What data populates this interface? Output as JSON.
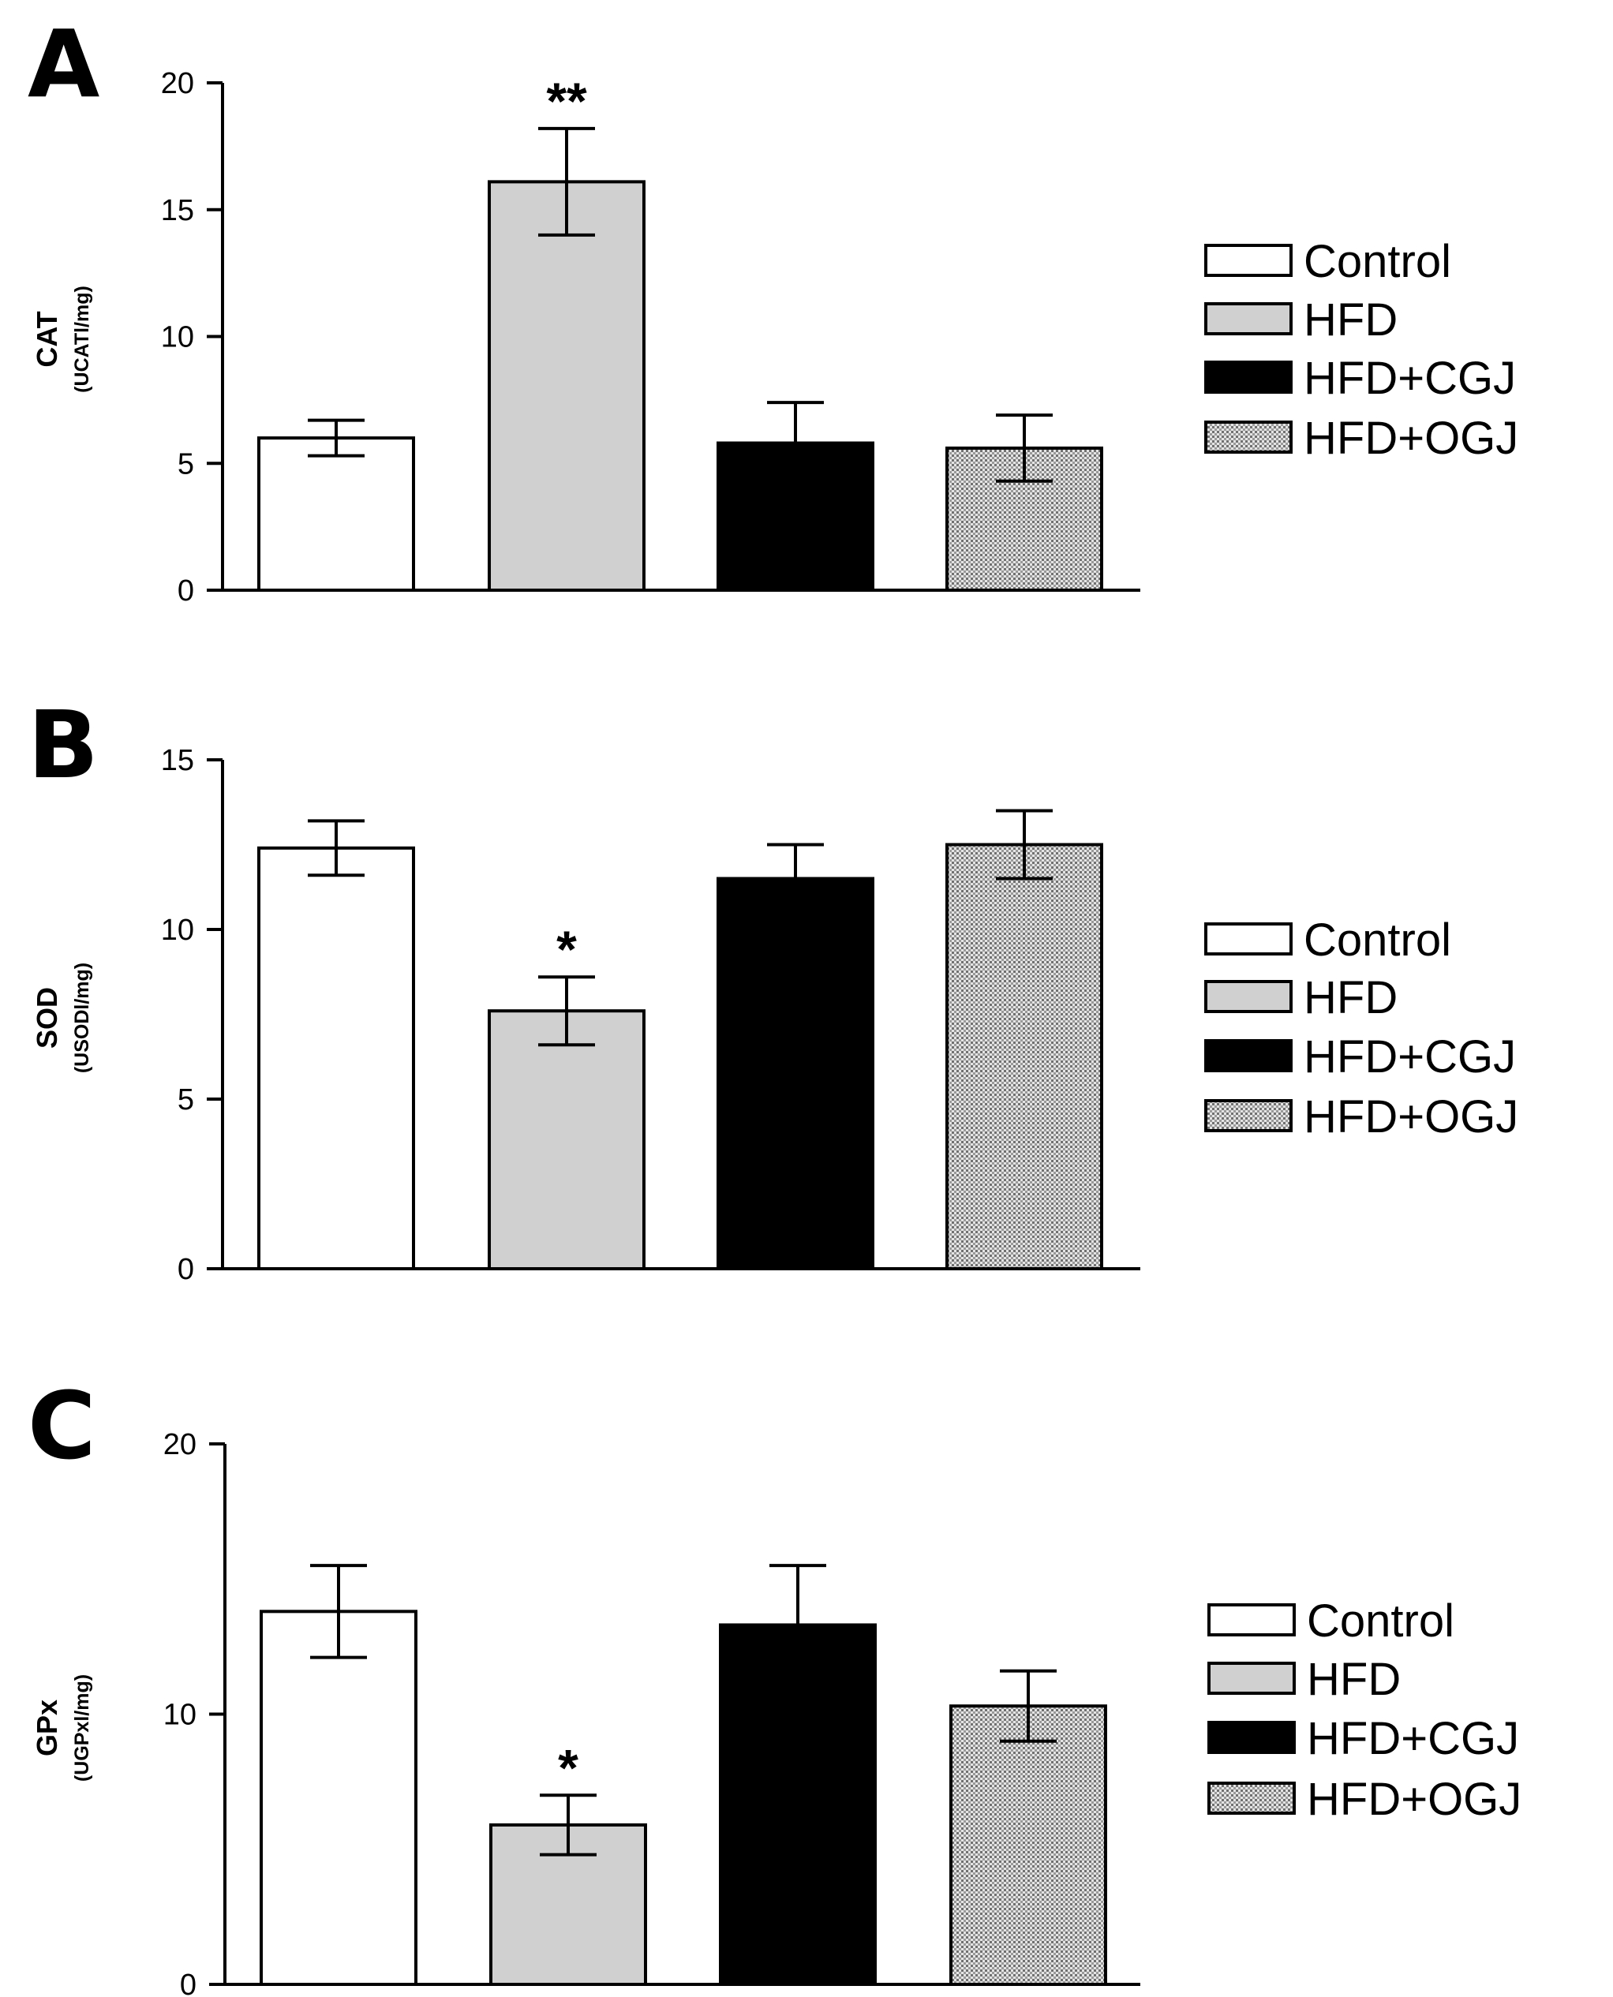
{
  "chart_data": [
    {
      "type": "bar",
      "panel": "A",
      "ylabel": "CAT",
      "yunit": "(UCATl/mg)",
      "categories": [
        "Control",
        "HFD",
        "HFD+CGJ",
        "HFD+OGJ"
      ],
      "values": [
        6.0,
        16.1,
        5.8,
        5.6
      ],
      "errors": [
        0.7,
        2.1,
        1.6,
        1.3
      ],
      "significance": [
        "",
        "**",
        "",
        ""
      ],
      "ylim": [
        0,
        20
      ],
      "yticks": [
        0,
        5,
        10,
        15,
        20
      ],
      "legend": [
        "Control",
        "HFD",
        "HFD+CGJ",
        "HFD+OGJ"
      ]
    },
    {
      "type": "bar",
      "panel": "B",
      "ylabel": "SOD",
      "yunit": "(USODl/mg)",
      "categories": [
        "Control",
        "HFD",
        "HFD+CGJ",
        "HFD+OGJ"
      ],
      "values": [
        12.4,
        7.6,
        11.5,
        12.5
      ],
      "errors": [
        0.8,
        1.0,
        1.0,
        1.0
      ],
      "significance": [
        "",
        "*",
        "",
        ""
      ],
      "ylim": [
        0,
        15
      ],
      "yticks": [
        0,
        5,
        10,
        15
      ],
      "legend": [
        "Control",
        "HFD",
        "HFD+CGJ",
        "HFD+OGJ"
      ]
    },
    {
      "type": "bar",
      "panel": "C",
      "ylabel": "GPx",
      "yunit": "(UGPxl/mg)",
      "categories": [
        "Control",
        "HFD",
        "HFD+CGJ",
        "HFD+OGJ"
      ],
      "values": [
        13.8,
        5.9,
        13.3,
        10.3
      ],
      "errors": [
        1.7,
        1.1,
        2.2,
        1.3
      ],
      "significance": [
        "",
        "*",
        "",
        ""
      ],
      "ylim": [
        0,
        20
      ],
      "yticks": [
        0,
        10,
        20
      ],
      "legend": [
        "Control",
        "HFD",
        "HFD+CGJ",
        "HFD+OGJ"
      ]
    }
  ],
  "styles": {
    "Control": "#ffffff",
    "HFD": "#d0d0d0",
    "HFD+CGJ": "#000000",
    "HFD+OGJ": "dotted-gray"
  }
}
